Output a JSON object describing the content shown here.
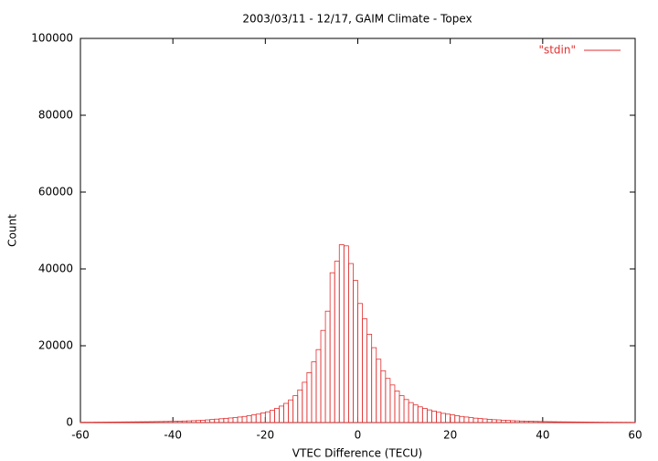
{
  "chart_data": {
    "type": "histogram",
    "title": "2003/03/11 - 12/17, GAIM Climate - Topex",
    "x_label": "VTEC Difference (TECU)",
    "y_label": "Count",
    "bins": [
      -60,
      -59,
      -58,
      -57,
      -56,
      -55,
      -54,
      -53,
      -52,
      -51,
      -50,
      -49,
      -48,
      -47,
      -46,
      -45,
      -44,
      -43,
      -42,
      -41,
      -40,
      -39,
      -38,
      -37,
      -36,
      -35,
      -34,
      -33,
      -32,
      -31,
      -30,
      -29,
      -28,
      -27,
      -26,
      -25,
      -24,
      -23,
      -22,
      -21,
      -20,
      -19,
      -18,
      -17,
      -16,
      -15,
      -14,
      -13,
      -12,
      -11,
      -10,
      -9,
      -8,
      -7,
      -6,
      -5,
      -4,
      -3,
      -2,
      -1,
      0,
      1,
      2,
      3,
      4,
      5,
      6,
      7,
      8,
      9,
      10,
      11,
      12,
      13,
      14,
      15,
      16,
      17,
      18,
      19,
      20,
      21,
      22,
      23,
      24,
      25,
      26,
      27,
      28,
      29,
      30,
      31,
      32,
      33,
      34,
      35,
      36,
      37,
      38,
      39,
      40,
      41,
      42,
      43,
      44,
      45,
      46,
      47,
      48,
      49,
      50,
      51,
      52,
      53,
      54,
      55,
      56,
      57,
      58,
      59,
      60
    ],
    "series": [
      {
        "name": "\"stdin\"",
        "color": "#e03030",
        "values": [
          100,
          100,
          100,
          120,
          120,
          130,
          140,
          150,
          160,
          170,
          180,
          190,
          200,
          210,
          220,
          240,
          260,
          280,
          300,
          320,
          350,
          380,
          410,
          450,
          500,
          550,
          600,
          700,
          800,
          900,
          1000,
          1100,
          1200,
          1300,
          1450,
          1600,
          1800,
          2000,
          2200,
          2500,
          2800,
          3200,
          3700,
          4300,
          5000,
          5900,
          7000,
          8500,
          10500,
          13000,
          15800,
          19000,
          24000,
          29000,
          39000,
          42000,
          46300,
          46000,
          41400,
          37000,
          31000,
          27000,
          23000,
          19500,
          16500,
          13500,
          11500,
          9800,
          8200,
          7000,
          6000,
          5200,
          4600,
          4100,
          3700,
          3300,
          3000,
          2700,
          2400,
          2200,
          2000,
          1800,
          1600,
          1450,
          1300,
          1150,
          1050,
          950,
          850,
          750,
          700,
          620,
          560,
          500,
          450,
          400,
          370,
          340,
          310,
          280,
          260,
          240,
          220,
          200,
          190,
          180,
          170,
          160,
          150,
          140,
          130,
          120,
          110,
          100,
          100,
          90,
          90,
          80,
          80,
          70
        ]
      }
    ],
    "xlim": [
      -60,
      60
    ],
    "ylim": [
      0,
      100000
    ],
    "xticks": [
      -60,
      -40,
      -20,
      0,
      20,
      40,
      60
    ],
    "yticks": [
      0,
      20000,
      40000,
      60000,
      80000,
      100000
    ],
    "legend": "top-right"
  }
}
